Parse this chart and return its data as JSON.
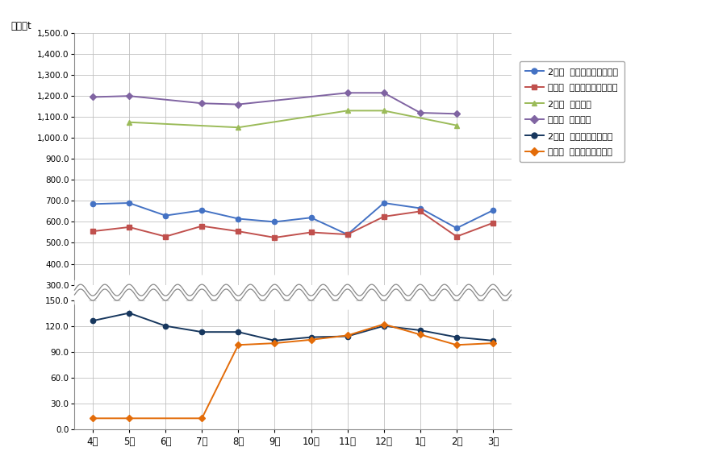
{
  "months": [
    "。4月",
    "。5月",
    "。6月",
    "。7月",
    "。8月",
    "。9月",
    "。10月",
    "。11月",
    "。12月",
    "。1月",
    "。2月",
    "。3月"
  ],
  "months_plain": [
    "4月",
    "5月",
    "6月",
    "7月",
    "8月",
    "9月",
    "10月",
    "11月",
    "12月",
    "1月",
    "2月",
    "3月"
  ],
  "series": {
    "station_2": [
      685,
      690,
      630,
      655,
      615,
      600,
      620,
      540,
      690,
      665,
      570,
      655
    ],
    "station_gen": [
      555,
      575,
      530,
      580,
      555,
      525,
      550,
      540,
      625,
      650,
      530,
      595
    ],
    "group_2": [
      null,
      1075,
      null,
      null,
      1050,
      null,
      null,
      1130,
      1130,
      null,
      1060,
      null
    ],
    "group_gen": [
      1195,
      1200,
      null,
      1165,
      1160,
      null,
      null,
      1215,
      1215,
      1120,
      1115,
      null
    ],
    "pickup_2": [
      126,
      135,
      120,
      113,
      113,
      103,
      107,
      108,
      120,
      115,
      107,
      103
    ],
    "pickup_gen": [
      13,
      13,
      null,
      13,
      98,
      100,
      104,
      109,
      122,
      110,
      98,
      100
    ]
  },
  "top_yticks": [
    300.0,
    400.0,
    500.0,
    600.0,
    700.0,
    800.0,
    900.0,
    1000.0,
    1100.0,
    1200.0,
    1300.0,
    1400.0,
    1500.0
  ],
  "bottom_yticks": [
    0.0,
    30.0,
    60.0,
    90.0,
    120.0,
    150.0
  ],
  "legend_labels": [
    "2年度  ステーション・拠点",
    "元年度  ステーション・拠点",
    "2年度  集団回収",
    "元年度  集団回収",
    "2年度  ピックアップ回収",
    "元年度  ピックアップ回収"
  ],
  "colors": {
    "station_2": "#4472C4",
    "station_gen": "#C0504D",
    "group_2": "#9BBB59",
    "group_gen": "#8064A2",
    "pickup_2": "#17375E",
    "pickup_gen": "#E36C09"
  },
  "unit_label": "単位：t",
  "background_color": "#FFFFFF",
  "grid_color": "#C0C0C0"
}
